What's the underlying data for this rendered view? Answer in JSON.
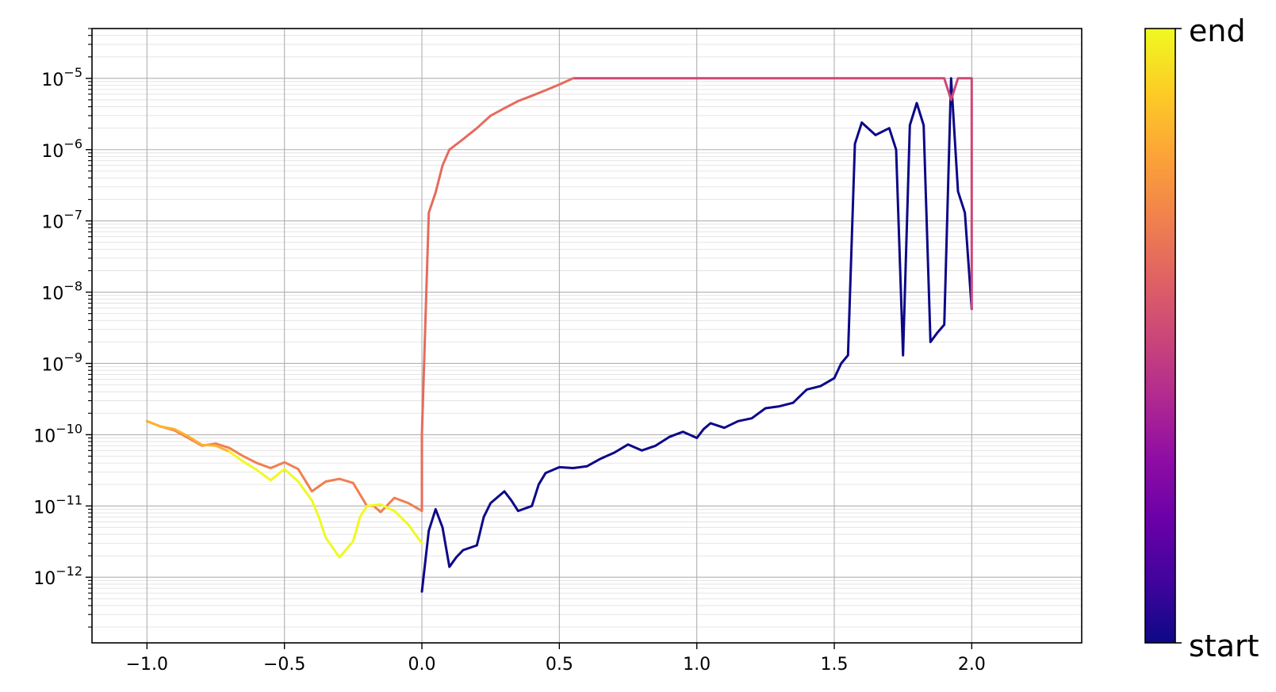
{
  "chart_data": {
    "type": "line",
    "title": "",
    "xlabel": "",
    "ylabel": "",
    "xlim": [
      -1.2,
      2.4
    ],
    "ylim": [
      1.2e-13,
      5e-05
    ],
    "yscale": "log",
    "grid": true,
    "x_ticks": [
      {
        "value": -1.0,
        "label": "−1.0"
      },
      {
        "value": -0.5,
        "label": "−0.5"
      },
      {
        "value": 0.0,
        "label": "0.0"
      },
      {
        "value": 0.5,
        "label": "0.5"
      },
      {
        "value": 1.0,
        "label": "1.0"
      },
      {
        "value": 1.5,
        "label": "1.5"
      },
      {
        "value": 2.0,
        "label": "2.0"
      }
    ],
    "y_ticks": [
      {
        "exp": -12,
        "base": "10",
        "sup": "−12"
      },
      {
        "exp": -11,
        "base": "10",
        "sup": "−11"
      },
      {
        "exp": -10,
        "base": "10",
        "sup": "−10"
      },
      {
        "exp": -9,
        "base": "10",
        "sup": "−9"
      },
      {
        "exp": -8,
        "base": "10",
        "sup": "−8"
      },
      {
        "exp": -7,
        "base": "10",
        "sup": "−7"
      },
      {
        "exp": -6,
        "base": "10",
        "sup": "−6"
      },
      {
        "exp": -5,
        "base": "10",
        "sup": "−5"
      }
    ],
    "colormap": "plasma",
    "colorbar": {
      "top_label": "end",
      "bottom_label": "start"
    },
    "series": [
      {
        "color": "#0d0887",
        "x": [
          0.0,
          0.025,
          0.05,
          0.075,
          0.1,
          0.125,
          0.15,
          0.2,
          0.225,
          0.25,
          0.3,
          0.325,
          0.35,
          0.4,
          0.425,
          0.45,
          0.5,
          0.55,
          0.6,
          0.65,
          0.7,
          0.75,
          0.8,
          0.85,
          0.9,
          0.95,
          1.0,
          1.025,
          1.05,
          1.1,
          1.15,
          1.2,
          1.25,
          1.3,
          1.35,
          1.4,
          1.45,
          1.5,
          1.525,
          1.55,
          1.575,
          1.6,
          1.65,
          1.7,
          1.725,
          1.75,
          1.775,
          1.8,
          1.825,
          1.85,
          1.875,
          1.9,
          1.925,
          1.95,
          1.975,
          2.0
        ],
        "y": [
          6.3e-13,
          4.5e-12,
          9e-12,
          5e-12,
          1.4e-12,
          1.9e-12,
          2.4e-12,
          2.8e-12,
          7e-12,
          1.1e-11,
          1.6e-11,
          1.2e-11,
          8.5e-12,
          1e-11,
          2e-11,
          2.9e-11,
          3.5e-11,
          3.4e-11,
          3.6e-11,
          4.6e-11,
          5.6e-11,
          7.3e-11,
          6e-11,
          7e-11,
          9.3e-11,
          1.1e-10,
          9e-11,
          1.2e-10,
          1.45e-10,
          1.25e-10,
          1.55e-10,
          1.7e-10,
          2.35e-10,
          2.5e-10,
          2.8e-10,
          4.3e-10,
          4.8e-10,
          6.2e-10,
          1e-09,
          1.3e-09,
          1.2e-06,
          2.4e-06,
          1.6e-06,
          2e-06,
          1e-06,
          1.3e-09,
          2.2e-06,
          4.5e-06,
          2.2e-06,
          2e-09,
          2.7e-09,
          3.5e-09,
          1e-05,
          2.6e-07,
          1.3e-07,
          5.8e-09
        ]
      },
      {
        "color": "#cc4778",
        "x": [
          2.0,
          2.0,
          1.95,
          1.925,
          1.9,
          1.8,
          1.7,
          1.6,
          1.5,
          1.4,
          1.3,
          1.2,
          1.1,
          1.0,
          0.9,
          0.8,
          0.7,
          0.6,
          0.55
        ],
        "y": [
          5.8e-09,
          1e-05,
          1e-05,
          5e-06,
          1e-05,
          1e-05,
          1e-05,
          1e-05,
          1e-05,
          1e-05,
          1e-05,
          1e-05,
          1e-05,
          1e-05,
          1e-05,
          1e-05,
          1e-05,
          1e-05,
          1e-05
        ]
      },
      {
        "color": "#e56b5d",
        "x": [
          0.55,
          0.5,
          0.45,
          0.4,
          0.35,
          0.3,
          0.25,
          0.2,
          0.15,
          0.1,
          0.075,
          0.05,
          0.025,
          0.0,
          0.0
        ],
        "y": [
          1e-05,
          8.2e-06,
          6.8e-06,
          5.7e-06,
          4.8e-06,
          3.8e-06,
          3e-06,
          2e-06,
          1.4e-06,
          1e-06,
          6e-07,
          2.5e-07,
          1.3e-07,
          1e-10,
          8.5e-12
        ]
      },
      {
        "color": "#f07f4f",
        "x": [
          0.0,
          -0.05,
          -0.1,
          -0.15,
          -0.175,
          -0.2,
          -0.25,
          -0.3,
          -0.35,
          -0.4,
          -0.425,
          -0.45,
          -0.5,
          -0.55,
          -0.6,
          -0.65,
          -0.7,
          -0.75,
          -0.8,
          -0.85,
          -0.9,
          -0.95,
          -1.0
        ],
        "y": [
          8.5e-12,
          1.1e-11,
          1.3e-11,
          8.2e-12,
          1e-11,
          1e-11,
          2.1e-11,
          2.4e-11,
          2.2e-11,
          1.6e-11,
          2.3e-11,
          3.3e-11,
          4.1e-11,
          3.4e-11,
          4e-11,
          5e-11,
          6.5e-11,
          7.5e-11,
          7e-11,
          9e-11,
          1.15e-10,
          1.3e-10,
          1.55e-10
        ]
      },
      {
        "color": "#fdb32f",
        "x": [
          -1.0,
          -0.95,
          -0.9,
          -0.85,
          -0.8,
          -0.75,
          -0.7
        ],
        "y": [
          1.55e-10,
          1.3e-10,
          1.2e-10,
          9.5e-11,
          7.2e-11,
          7e-11,
          5.8e-11
        ]
      },
      {
        "color": "#f0f921",
        "x": [
          -0.7,
          -0.65,
          -0.6,
          -0.55,
          -0.5,
          -0.45,
          -0.4,
          -0.375,
          -0.35,
          -0.3,
          -0.25,
          -0.225,
          -0.2,
          -0.15,
          -0.1,
          -0.05,
          0.0
        ],
        "y": [
          5.8e-11,
          4.2e-11,
          3.2e-11,
          2.3e-11,
          3.3e-11,
          2.2e-11,
          1.2e-11,
          7e-12,
          3.6e-12,
          1.9e-12,
          3.2e-12,
          7e-12,
          1e-11,
          1.05e-11,
          8.5e-12,
          5.5e-12,
          3e-12
        ]
      }
    ]
  }
}
